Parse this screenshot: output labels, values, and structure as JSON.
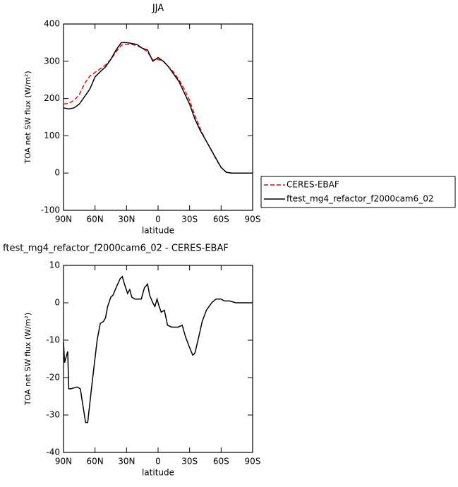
{
  "chart_data": [
    {
      "type": "line",
      "title": "JJA",
      "xlabel": "latitude",
      "ylabel": "TOA net SW flux (W/m²)",
      "xlim": [
        90,
        -90
      ],
      "ylim": [
        -100,
        400
      ],
      "xticks": [
        {
          "value": 90,
          "label": "90N"
        },
        {
          "value": 60,
          "label": "60N"
        },
        {
          "value": 30,
          "label": "30N"
        },
        0,
        {
          "value": -30,
          "label": "30S"
        },
        {
          "value": -60,
          "label": "60S"
        },
        {
          "value": -90,
          "label": "90S"
        }
      ],
      "yticks": [
        -100,
        0,
        100,
        200,
        300,
        400
      ],
      "legend": "outside-right",
      "x": [
        90,
        85,
        80,
        75,
        70,
        65,
        60,
        55,
        50,
        45,
        40,
        35,
        30,
        25,
        20,
        15,
        10,
        5,
        0,
        -5,
        -10,
        -15,
        -20,
        -25,
        -30,
        -35,
        -40,
        -45,
        -50,
        -55,
        -60,
        -65,
        -70,
        -75,
        -80,
        -85,
        -90
      ],
      "series": [
        {
          "name": "CERES-EBAF",
          "color": "#ff0000",
          "line_style": "dashed",
          "values": [
            185,
            187,
            195,
            210,
            240,
            260,
            270,
            280,
            290,
            305,
            325,
            343,
            345,
            345,
            342,
            335,
            325,
            303,
            305,
            300,
            285,
            270,
            250,
            225,
            195,
            155,
            120,
            90,
            65,
            38,
            15,
            2,
            0,
            0,
            0,
            0,
            0
          ]
        },
        {
          "name": "ftest_mg4_refactor_f2000cam6_02",
          "color": "#000000",
          "line_style": "solid",
          "values": [
            175,
            172,
            175,
            185,
            205,
            225,
            258,
            272,
            285,
            305,
            330,
            350,
            350,
            348,
            345,
            335,
            330,
            300,
            310,
            300,
            285,
            265,
            245,
            215,
            185,
            145,
            115,
            90,
            65,
            40,
            15,
            2,
            0,
            0,
            0,
            0,
            0
          ]
        }
      ]
    },
    {
      "type": "line",
      "title": "ftest_mg4_refactor_f2000cam6_02 - CERES-EBAF",
      "xlabel": "latitude",
      "ylabel": "TOA net SW flux (W/m²)",
      "xlim": [
        90,
        -90
      ],
      "ylim": [
        -40,
        10
      ],
      "xticks": [
        {
          "value": 90,
          "label": "90N"
        },
        {
          "value": 60,
          "label": "60N"
        },
        {
          "value": 30,
          "label": "30N"
        },
        0,
        {
          "value": -30,
          "label": "30S"
        },
        {
          "value": -60,
          "label": "60S"
        },
        {
          "value": -90,
          "label": "90S"
        }
      ],
      "yticks": [
        -40,
        -30,
        -20,
        -10,
        0,
        10
      ],
      "x": [
        90,
        89,
        86,
        85,
        83,
        77,
        74,
        69,
        67,
        63,
        58,
        55,
        52,
        50,
        48,
        45,
        43,
        40,
        36,
        34,
        32,
        29,
        27,
        25,
        22,
        16,
        13,
        10,
        8,
        5,
        3,
        1,
        -1,
        -3,
        -6,
        -9,
        -13,
        -19,
        -23,
        -26,
        -30,
        -33,
        -35,
        -38,
        -42,
        -46,
        -51,
        -55,
        -60,
        -63,
        -68,
        -74,
        -90
      ],
      "series": [
        {
          "color": "#000000",
          "line_style": "solid",
          "values": [
            -10.5,
            -16,
            -13,
            -23,
            -23,
            -22.5,
            -23,
            -32,
            -32,
            -22,
            -10,
            -5.5,
            -5,
            -4,
            -1,
            1.5,
            2,
            4,
            6.5,
            7,
            5,
            2.5,
            3.5,
            1.5,
            1,
            1,
            4,
            5,
            2,
            0,
            -1,
            1,
            -1,
            -2.5,
            -2,
            -6,
            -6.5,
            -6.5,
            -6,
            -9,
            -12,
            -14,
            -13.5,
            -10,
            -5,
            -2,
            0,
            1,
            1,
            0.5,
            0.5,
            0,
            0
          ]
        }
      ]
    }
  ]
}
